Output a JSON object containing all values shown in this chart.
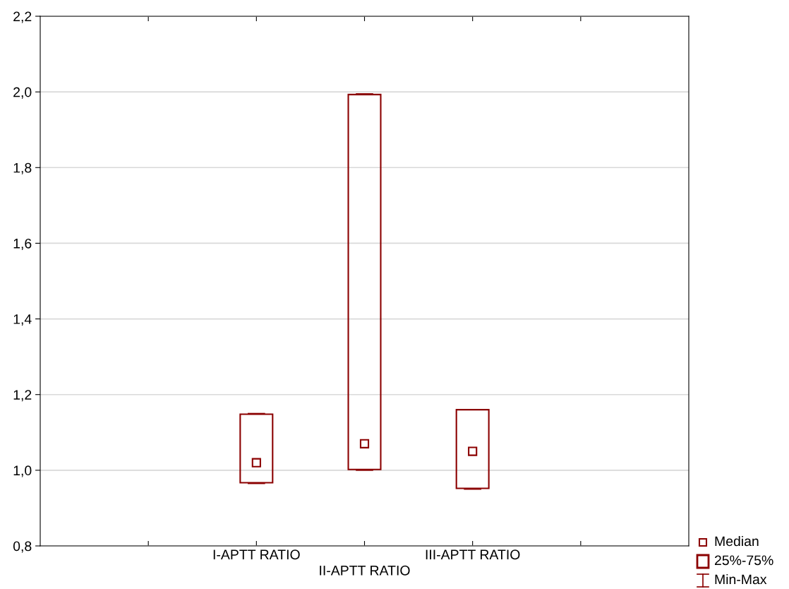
{
  "chart_data": {
    "type": "box",
    "categories": [
      null,
      "I-APTT RATIO",
      "II-APTT RATIO",
      "III-APTT RATIO",
      null
    ],
    "color": "#8b0000",
    "boxes": [
      null,
      {
        "low": 0.965,
        "q1": 0.967,
        "median": 1.02,
        "q3": 1.148,
        "high": 1.15
      },
      {
        "low": 1.0,
        "q1": 1.002,
        "median": 1.07,
        "q3": 1.993,
        "high": 1.995
      },
      {
        "low": 0.95,
        "q1": 0.952,
        "median": 1.05,
        "q3": 1.16,
        "high": 1.16
      },
      null
    ],
    "ylim": [
      0.8,
      2.2
    ],
    "yticks": [
      {
        "value": 0.8,
        "label": "0,8"
      },
      {
        "value": 1.0,
        "label": "1,0"
      },
      {
        "value": 1.2,
        "label": "1,2"
      },
      {
        "value": 1.4,
        "label": "1,4"
      },
      {
        "value": 1.6,
        "label": "1,6"
      },
      {
        "value": 1.8,
        "label": "1,8"
      },
      {
        "value": 2.0,
        "label": "2,0"
      },
      {
        "value": 2.2,
        "label": "2,2"
      }
    ],
    "grid": "y",
    "annotations": [
      "Median",
      "25%-75%",
      "Min-Max"
    ]
  }
}
